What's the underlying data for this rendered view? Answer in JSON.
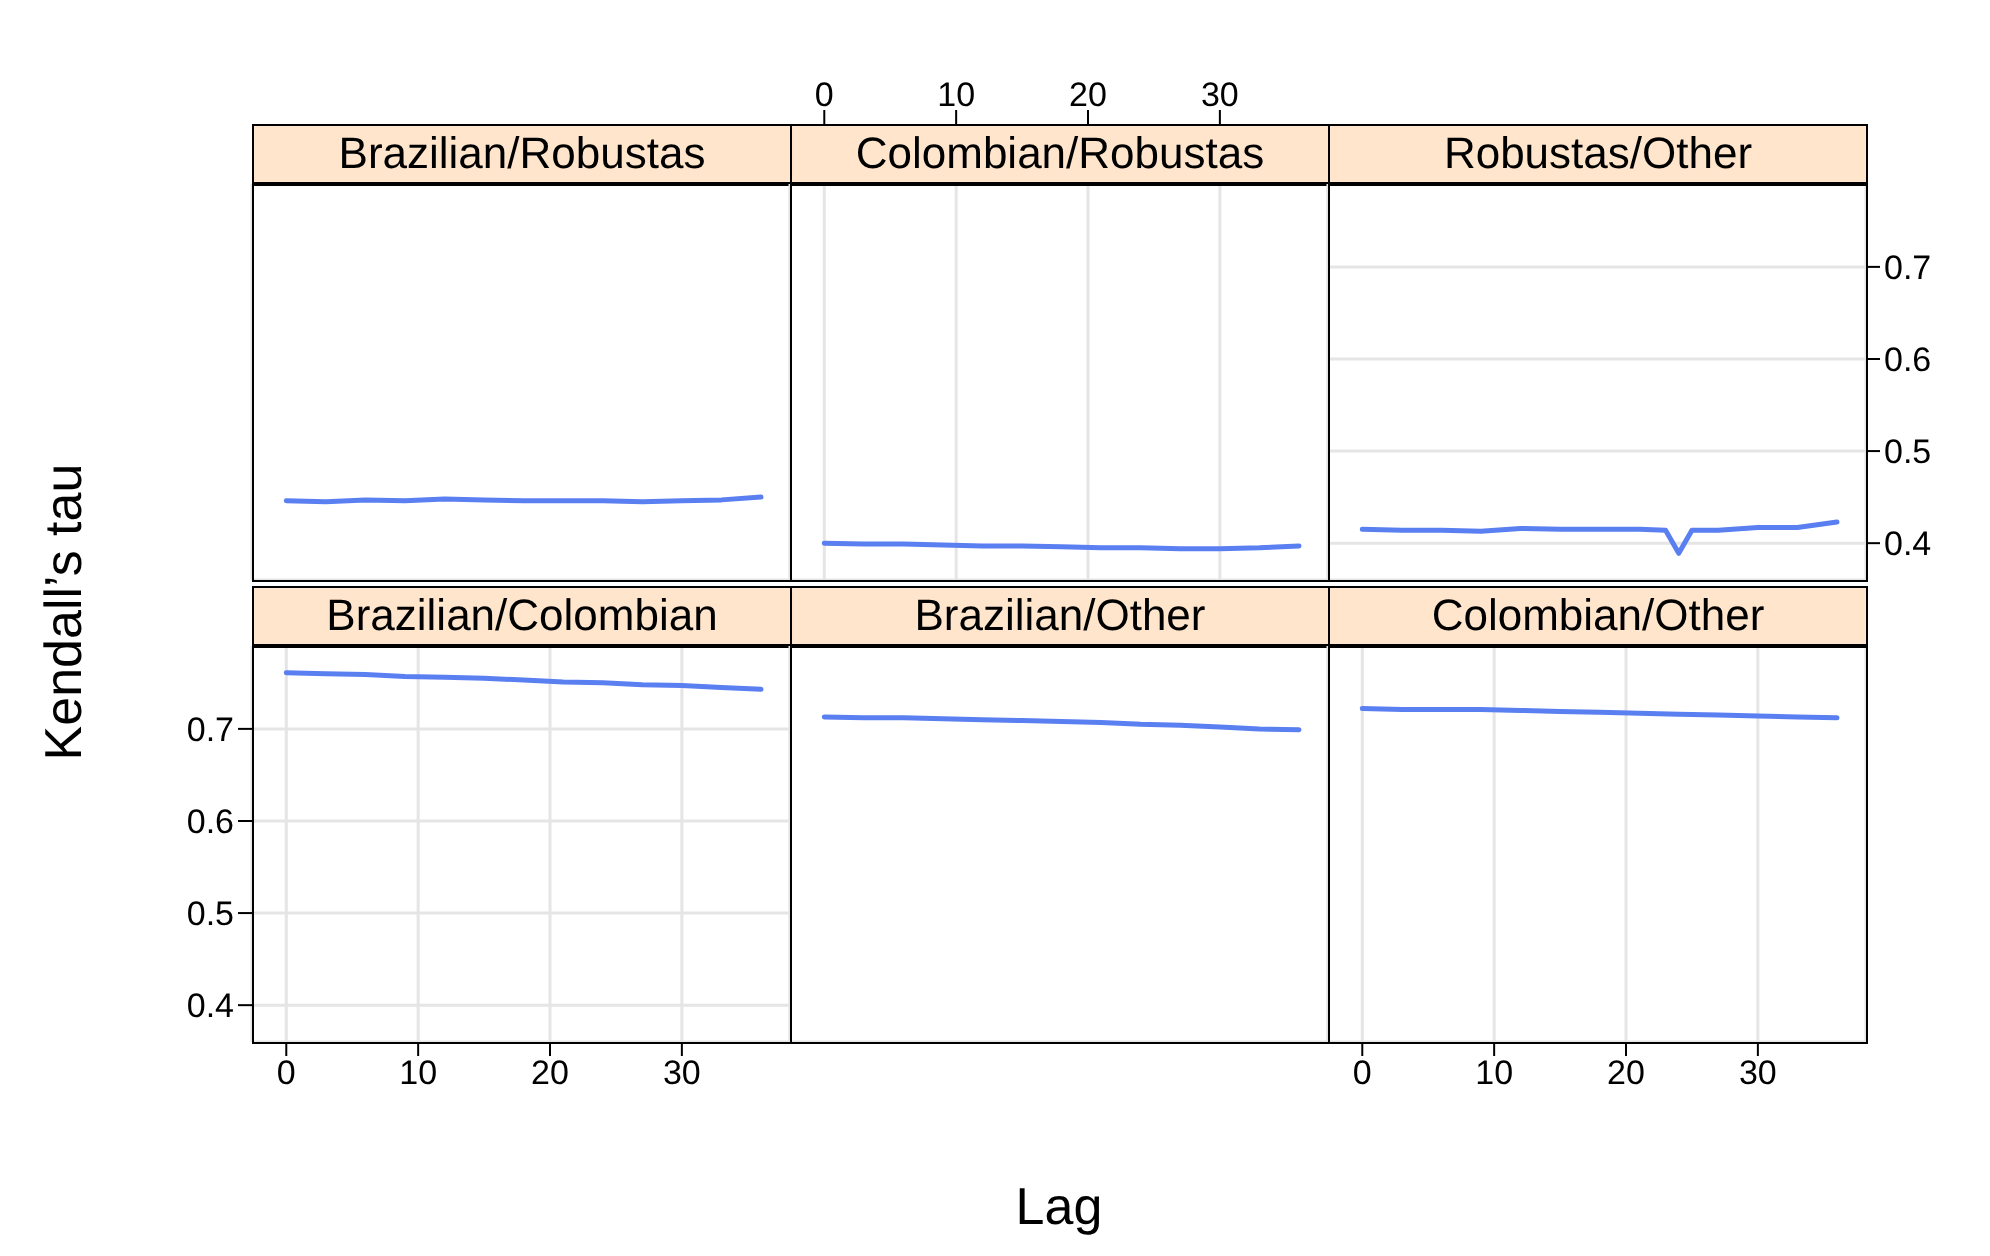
{
  "chart_data": [
    {
      "type": "line",
      "title": "Brazilian/Robustas",
      "xlabel": "Lag",
      "ylabel": "Kendall’s tau",
      "xlim": [
        -2.6,
        38.2
      ],
      "xticks": [
        0,
        10,
        20,
        30
      ],
      "ylim": [
        0.36,
        0.79
      ],
      "yticks": [
        0.4,
        0.5,
        0.6,
        0.7
      ],
      "grid": true,
      "tick_labels": false,
      "line_style": "solid",
      "marker": "none",
      "series": [
        {
          "color": "#5a7ff0",
          "x": [
            0,
            3,
            6,
            9,
            12,
            15,
            18,
            21,
            24,
            27,
            30,
            33,
            36
          ],
          "values": [
            0.446,
            0.445,
            0.447,
            0.446,
            0.448,
            0.447,
            0.446,
            0.446,
            0.446,
            0.445,
            0.446,
            0.447,
            0.45
          ]
        }
      ]
    },
    {
      "type": "line",
      "title": "Colombian/Robustas",
      "xlim": [
        -2.6,
        38.2
      ],
      "xticks": [
        0,
        10,
        20,
        30
      ],
      "ylim": [
        0.36,
        0.79
      ],
      "yticks": [
        0.4,
        0.5,
        0.6,
        0.7
      ],
      "grid": true,
      "tick_labels": "x",
      "line_style": "solid",
      "marker": "none",
      "series": [
        {
          "color": "#5a7ff0",
          "x": [
            0,
            3,
            6,
            9,
            12,
            15,
            18,
            21,
            24,
            27,
            30,
            33,
            36
          ],
          "values": [
            0.4,
            0.399,
            0.399,
            0.398,
            0.397,
            0.397,
            0.396,
            0.395,
            0.395,
            0.394,
            0.394,
            0.395,
            0.397
          ]
        }
      ]
    },
    {
      "type": "line",
      "title": "Robustas/Other",
      "xlim": [
        -2.6,
        38.2
      ],
      "xticks": [
        0,
        10,
        20,
        30
      ],
      "ylim": [
        0.36,
        0.79
      ],
      "yticks": [
        0.4,
        0.5,
        0.6,
        0.7
      ],
      "grid": true,
      "tick_labels": "y",
      "line_style": "solid",
      "marker": "none",
      "series": [
        {
          "color": "#5a7ff0",
          "x": [
            0,
            3,
            6,
            9,
            12,
            15,
            18,
            21,
            23,
            24,
            25,
            27,
            30,
            33,
            36
          ],
          "values": [
            0.415,
            0.414,
            0.414,
            0.413,
            0.416,
            0.415,
            0.415,
            0.415,
            0.414,
            0.389,
            0.414,
            0.414,
            0.417,
            0.417,
            0.423
          ]
        }
      ]
    },
    {
      "type": "line",
      "title": "Brazilian/Colombian",
      "xlim": [
        -2.6,
        38.2
      ],
      "xticks": [
        0,
        10,
        20,
        30
      ],
      "ylim": [
        0.36,
        0.79
      ],
      "yticks": [
        0.4,
        0.5,
        0.6,
        0.7
      ],
      "grid": true,
      "line_style": "solid",
      "marker": "none",
      "series": [
        {
          "color": "#5a7ff0",
          "x": [
            0,
            3,
            6,
            9,
            12,
            15,
            18,
            21,
            24,
            27,
            30,
            33,
            36
          ],
          "values": [
            0.761,
            0.76,
            0.759,
            0.757,
            0.756,
            0.755,
            0.753,
            0.751,
            0.75,
            0.748,
            0.747,
            0.745,
            0.743
          ]
        }
      ]
    },
    {
      "type": "line",
      "title": "Brazilian/Other",
      "xlim": [
        -2.6,
        38.2
      ],
      "xticks": [
        0,
        10,
        20,
        30
      ],
      "ylim": [
        0.36,
        0.79
      ],
      "yticks": [
        0.4,
        0.5,
        0.6,
        0.7
      ],
      "grid": true,
      "tick_labels": false,
      "line_style": "solid",
      "marker": "none",
      "series": [
        {
          "color": "#5a7ff0",
          "x": [
            0,
            3,
            6,
            9,
            12,
            15,
            18,
            21,
            24,
            27,
            30,
            33,
            36
          ],
          "values": [
            0.713,
            0.712,
            0.712,
            0.711,
            0.71,
            0.709,
            0.708,
            0.707,
            0.705,
            0.704,
            0.702,
            0.7,
            0.699
          ]
        }
      ]
    },
    {
      "type": "line",
      "title": "Colombian/Other",
      "xlim": [
        -2.6,
        38.2
      ],
      "xticks": [
        0,
        10,
        20,
        30
      ],
      "ylim": [
        0.36,
        0.79
      ],
      "yticks": [
        0.4,
        0.5,
        0.6,
        0.7
      ],
      "grid": true,
      "tick_labels": "x",
      "line_style": "solid",
      "marker": "none",
      "series": [
        {
          "color": "#5a7ff0",
          "x": [
            0,
            3,
            6,
            9,
            12,
            15,
            18,
            21,
            24,
            27,
            30,
            33,
            36
          ],
          "values": [
            0.722,
            0.721,
            0.721,
            0.721,
            0.72,
            0.719,
            0.718,
            0.717,
            0.716,
            0.715,
            0.714,
            0.713,
            0.712
          ]
        }
      ]
    }
  ]
}
